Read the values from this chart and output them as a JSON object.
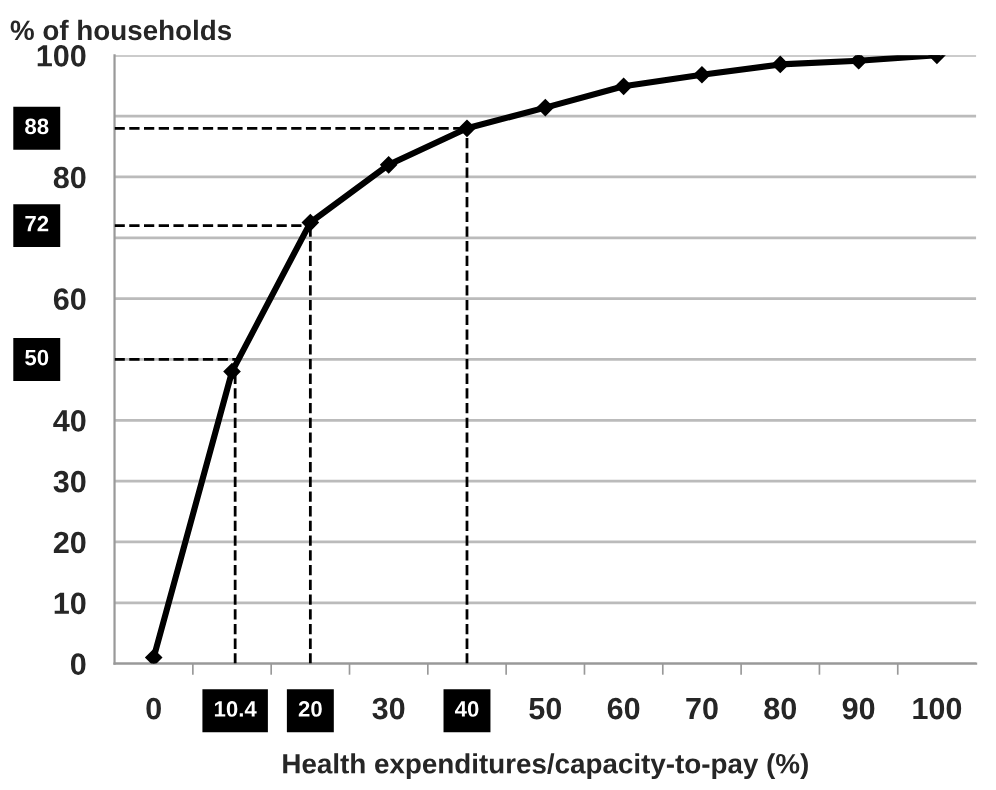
{
  "chart_data": {
    "type": "line",
    "ylabel": "% of households",
    "xlabel": "Health expenditures/capacity-to-pay (%)",
    "x": [
      0,
      10,
      20,
      30,
      40,
      50,
      60,
      70,
      80,
      90,
      100
    ],
    "series": [
      {
        "color": "#000000",
        "values": [
          1,
          48,
          72.5,
          82,
          88,
          91.4,
          94.9,
          96.8,
          98.5,
          99.1,
          100
        ]
      }
    ],
    "marker": "diamond",
    "line_style": "solid",
    "xlim": [
      -5,
      105
    ],
    "ylim": [
      0,
      100
    ],
    "xticks": [
      0,
      30,
      50,
      60,
      70,
      80,
      90,
      100,
      {
        "value": 5,
        "label": null
      },
      {
        "value": 15,
        "label": null
      },
      {
        "value": 25,
        "label": null
      },
      {
        "value": 35,
        "label": null
      },
      {
        "value": 45,
        "label": null
      },
      {
        "value": 55,
        "label": null
      },
      {
        "value": 65,
        "label": null
      },
      {
        "value": 75,
        "label": null
      },
      {
        "value": 85,
        "label": null
      },
      {
        "value": 95,
        "label": null
      }
    ],
    "yticks": [
      0,
      10,
      20,
      30,
      40,
      {
        "value": 50,
        "label": null
      },
      60,
      {
        "value": 70,
        "label": null
      },
      80,
      {
        "value": 90,
        "label": null
      },
      100
    ],
    "grid": "y",
    "ref_lines": [
      {
        "axis": "x",
        "value": 10.4,
        "label": "10.4",
        "line_style": "dashed",
        "color": "#000000"
      },
      {
        "axis": "x",
        "value": 20,
        "label": "20",
        "line_style": "dashed",
        "color": "#000000"
      },
      {
        "axis": "x",
        "value": 40,
        "label": "40",
        "line_style": "dashed",
        "color": "#000000"
      },
      {
        "axis": "y",
        "value": 50,
        "label": "50",
        "line_style": "dashed",
        "color": "#000000"
      },
      {
        "axis": "y",
        "value": 72,
        "label": "72",
        "line_style": "dashed",
        "color": "#000000"
      },
      {
        "axis": "y",
        "value": 88,
        "label": "88",
        "line_style": "dashed",
        "color": "#000000"
      }
    ]
  }
}
